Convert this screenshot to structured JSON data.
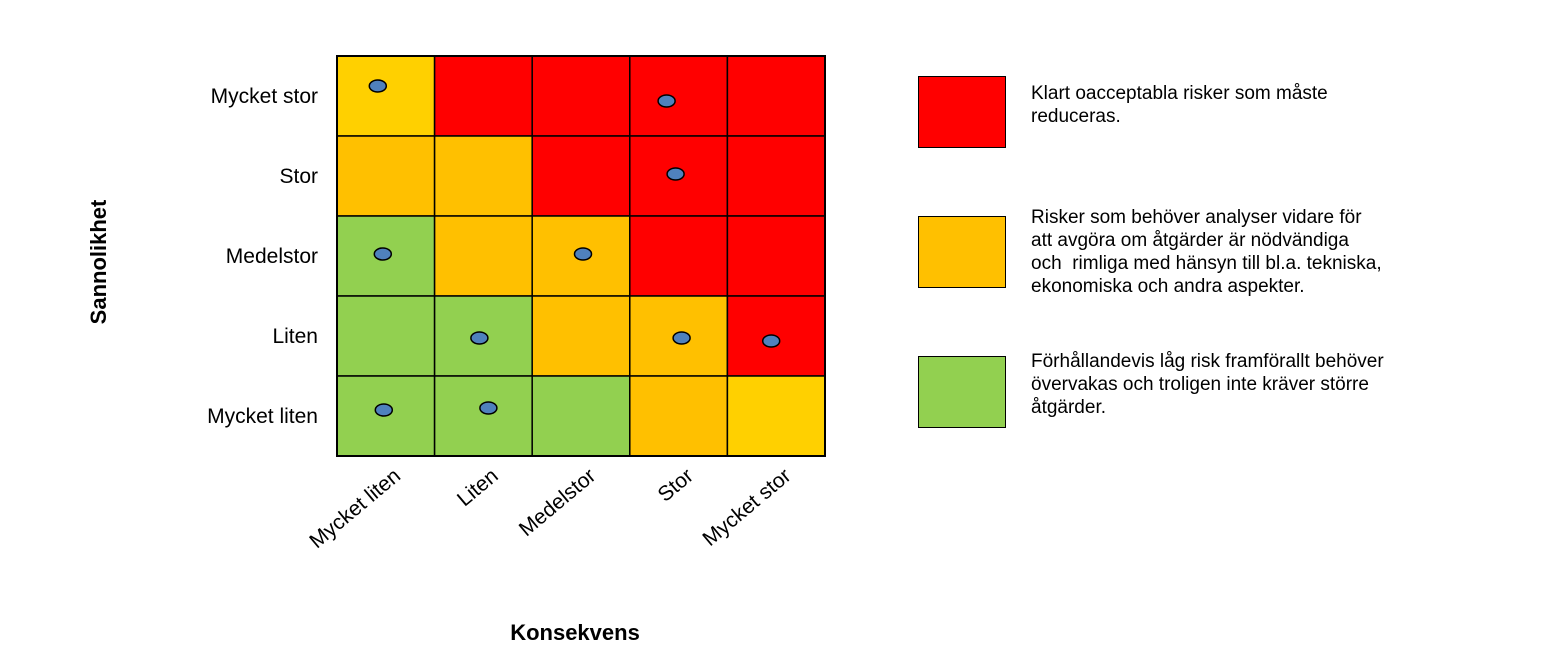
{
  "chart_data": {
    "type": "heatmap",
    "title": "",
    "xlabel": "Konsekvens",
    "ylabel": "Sannolikhet",
    "x_categories": [
      "Mycket liten",
      "Liten",
      "Medelstor",
      "Stor",
      "Mycket stor"
    ],
    "y_categories": [
      "Mycket stor",
      "Stor",
      "Medelstor",
      "Liten",
      "Mycket liten"
    ],
    "palette": {
      "red": "#ff0000",
      "orange": "#ffc000",
      "yellow": "#ffd000",
      "green": "#92d050",
      "marker": "#4f81bd"
    },
    "cells": [
      [
        "yellow",
        "red",
        "red",
        "red",
        "red"
      ],
      [
        "orange",
        "orange",
        "red",
        "red",
        "red"
      ],
      [
        "green",
        "orange",
        "orange",
        "red",
        "red"
      ],
      [
        "green",
        "green",
        "orange",
        "orange",
        "red"
      ],
      [
        "green",
        "green",
        "green",
        "orange",
        "yellow"
      ]
    ],
    "markers": [
      {
        "row": 0,
        "col": 0
      },
      {
        "row": 0,
        "col": 3
      },
      {
        "row": 1,
        "col": 3
      },
      {
        "row": 2,
        "col": 0
      },
      {
        "row": 2,
        "col": 2
      },
      {
        "row": 3,
        "col": 1
      },
      {
        "row": 3,
        "col": 3
      },
      {
        "row": 3,
        "col": 4
      },
      {
        "row": 4,
        "col": 0
      },
      {
        "row": 4,
        "col": 1
      }
    ]
  },
  "legend": [
    {
      "color": "#ff0000",
      "text": "Klart oacceptabla risker som måste\nreduceras."
    },
    {
      "color": "#ffc000",
      "text": "Risker som behöver analyser vidare för\natt avgöra om åtgärder är nödvändiga\noch  rimliga med hänsyn till bl.a. tekniska,\nekonomiska och andra aspekter."
    },
    {
      "color": "#92d050",
      "text": "Förhållandevis låg risk framförallt behöver\növervakas och troligen inte kräver större\nåtgärder."
    }
  ]
}
